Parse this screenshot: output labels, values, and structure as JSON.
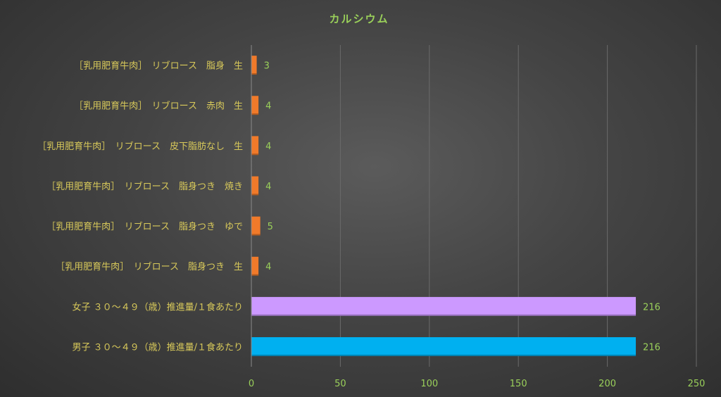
{
  "chart_data": {
    "type": "bar",
    "orientation": "horizontal",
    "title": "カルシウム",
    "categories": [
      "［乳用肥育牛肉］　リブロース　脂身　生",
      "［乳用肥育牛肉］　リブロース　赤肉　生",
      "［乳用肥育牛肉］　リブロース　皮下脂肪なし　生",
      "［乳用肥育牛肉］　リブロース　脂身つき　焼き",
      "［乳用肥育牛肉］　リブロース　脂身つき　ゆで",
      "［乳用肥育牛肉］　リブロース　脂身つき　生",
      "女子 ３０～４９（歳）推進量/１食あたり",
      "男子 ３０～４９（歳）推進量/１食あたり"
    ],
    "values": [
      3,
      4,
      4,
      4,
      5,
      4,
      216,
      216
    ],
    "data_labels": [
      "3",
      "4",
      "4",
      "4",
      "5",
      "4",
      "216",
      "216"
    ],
    "bar_colors": [
      "#f07a2a",
      "#f07a2a",
      "#f07a2a",
      "#f07a2a",
      "#f07a2a",
      "#f07a2a",
      "#cc99ff",
      "#00b0f0"
    ],
    "xlim": [
      0,
      250
    ],
    "xticks": [
      0,
      50,
      100,
      150,
      200,
      250
    ],
    "xtick_labels": [
      "0",
      "50",
      "100",
      "150",
      "200",
      "250"
    ],
    "grid": "vertical",
    "legend": "none"
  }
}
